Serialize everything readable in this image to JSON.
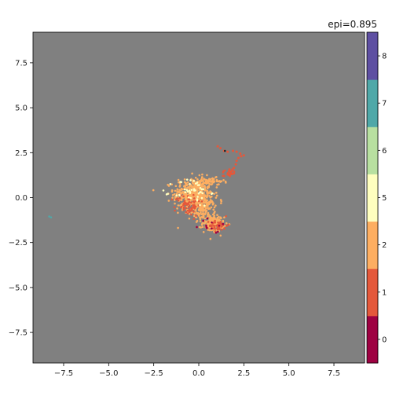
{
  "chart_data": {
    "type": "scatter",
    "title": "epi=0.895",
    "xlabel": "",
    "ylabel": "",
    "xlim": [
      -9.2,
      9.2
    ],
    "ylim": [
      -9.2,
      9.2
    ],
    "x_ticks": [
      -7.5,
      -5.0,
      -2.5,
      0.0,
      2.5,
      5.0,
      7.5
    ],
    "x_tick_labels": [
      "−7.5",
      "−5.0",
      "−2.5",
      "0.0",
      "2.5",
      "5.0",
      "7.5"
    ],
    "y_ticks": [
      7.5,
      5.0,
      2.5,
      0.0,
      -2.5,
      -5.0,
      -7.5
    ],
    "y_tick_labels": [
      "7.5",
      "5.0",
      "2.5",
      "0.0",
      "−2.5",
      "−5.0",
      "−7.5"
    ],
    "grid": false,
    "background_color": "#808080",
    "colorbar": {
      "levels": [
        0,
        1,
        2,
        3,
        4,
        5,
        6,
        7,
        8
      ],
      "tick_labels": [
        "0",
        "1",
        "2",
        "5",
        "6",
        "7",
        "8"
      ],
      "colors": [
        "#9e0142",
        "#e4583b",
        "#fdae61",
        "#ffffbf",
        "#b8e0a0",
        "#4fa8a8",
        "#5e4fa2"
      ]
    },
    "clusters": [
      {
        "class": 2,
        "color": "#fdae61",
        "cx": -0.3,
        "cy": 0.2,
        "sx": 0.55,
        "sy": 0.45,
        "n": 420
      },
      {
        "class": 2,
        "color": "#fdae61",
        "cx": 0.2,
        "cy": -0.6,
        "sx": 0.35,
        "sy": 0.3,
        "n": 160
      },
      {
        "class": 2,
        "color": "#fdae61",
        "cx": 0.8,
        "cy": -1.45,
        "sx": 0.3,
        "sy": 0.22,
        "n": 170
      },
      {
        "class": 2,
        "color": "#fdae61",
        "cx": 0.6,
        "cy": 0.9,
        "sx": 0.4,
        "sy": 0.1,
        "n": 60
      },
      {
        "class": 1,
        "color": "#e4583b",
        "cx": -0.6,
        "cy": -0.4,
        "sx": 0.35,
        "sy": 0.3,
        "n": 70
      },
      {
        "class": 1,
        "color": "#e4583b",
        "cx": 1.1,
        "cy": -1.55,
        "sx": 0.25,
        "sy": 0.15,
        "n": 50
      },
      {
        "class": 1,
        "color": "#e4583b",
        "cx": 1.7,
        "cy": 1.4,
        "sx": 0.2,
        "sy": 0.12,
        "n": 25
      },
      {
        "class": 5,
        "color": "#ffffbf",
        "cx": -0.4,
        "cy": 0.3,
        "sx": 0.5,
        "sy": 0.4,
        "n": 45
      },
      {
        "class": 0,
        "color": "#9e0142",
        "cx": 0.8,
        "cy": -1.5,
        "sx": 0.4,
        "sy": 0.25,
        "n": 12
      }
    ],
    "arc_points": {
      "class": 1,
      "color": "#e4583b",
      "points": [
        [
          1.4,
          1.2
        ],
        [
          1.6,
          1.3
        ],
        [
          1.8,
          1.45
        ],
        [
          1.95,
          1.65
        ],
        [
          2.05,
          1.85
        ],
        [
          2.1,
          2.05
        ],
        [
          2.2,
          2.2
        ],
        [
          2.35,
          2.3
        ],
        [
          2.5,
          2.35
        ],
        [
          2.3,
          2.45
        ],
        [
          2.1,
          2.55
        ],
        [
          1.9,
          2.6
        ],
        [
          1.6,
          2.55
        ],
        [
          1.4,
          2.6
        ],
        [
          1.2,
          2.75
        ],
        [
          1.05,
          2.85
        ]
      ]
    },
    "outliers": [
      {
        "x": 1.45,
        "y": 2.6,
        "class": 0,
        "color": "#222222"
      },
      {
        "x": -8.3,
        "y": -1.05,
        "class": 7,
        "color": "#4fa8a8"
      },
      {
        "x": -8.2,
        "y": -1.1,
        "class": 7,
        "color": "#4fa8a8"
      }
    ]
  }
}
